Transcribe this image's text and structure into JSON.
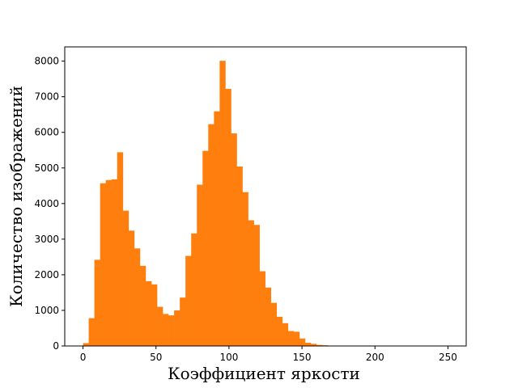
{
  "chart_data": {
    "type": "bar",
    "xlabel": "Коэффициент яркости",
    "ylabel": "Количество изображений",
    "xlim": [
      -12.5,
      262.5
    ],
    "ylim": [
      0,
      8400
    ],
    "xticks": [
      0,
      50,
      100,
      150,
      200,
      250
    ],
    "yticks": [
      0,
      1000,
      2000,
      3000,
      4000,
      5000,
      6000,
      7000,
      8000
    ],
    "grid": false,
    "bar_color": "#ff7f0e",
    "bin_width": 3.9,
    "bin_start": 0,
    "values": [
      80,
      780,
      2420,
      4570,
      4660,
      4680,
      5440,
      3800,
      3240,
      2740,
      2250,
      1820,
      1730,
      1100,
      900,
      860,
      1000,
      1360,
      2530,
      3160,
      4530,
      5480,
      6230,
      6590,
      8010,
      7220,
      5970,
      5040,
      4320,
      3530,
      3400,
      2100,
      1640,
      1210,
      820,
      640,
      420,
      400,
      210,
      90,
      60,
      30,
      20,
      10,
      0,
      0,
      0,
      0,
      0,
      0,
      0,
      0,
      0,
      0,
      0,
      0,
      0,
      0,
      0,
      0,
      0,
      0,
      0,
      0
    ]
  }
}
